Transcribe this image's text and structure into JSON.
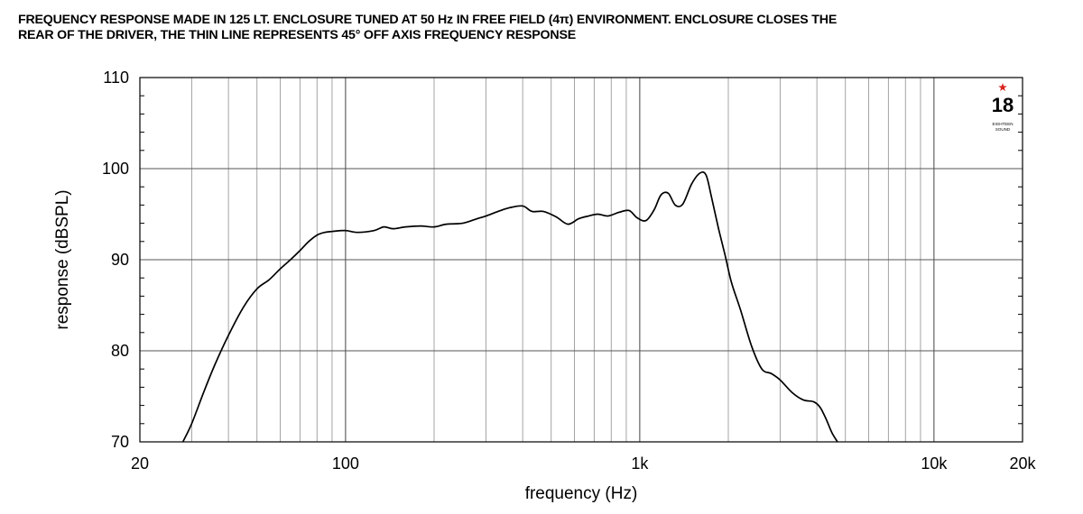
{
  "chart_data": {
    "type": "line",
    "title_line1": "FREQUENCY RESPONSE MADE IN 125 LT. ENCLOSURE TUNED AT 50 Hz IN FREE FIELD (4π) ENVIRONMENT. ENCLOSURE CLOSES THE",
    "title_line2": "REAR OF THE DRIVER, THE THIN LINE REPRESENTS 45° OFF AXIS FREQUENCY RESPONSE",
    "xlabel": "frequency (Hz)",
    "ylabel": "response (dBSPL)",
    "x_scale": "log",
    "xlim": [
      20,
      20000
    ],
    "ylim": [
      70,
      110
    ],
    "grid": true,
    "x_ticks": [
      {
        "value": 20,
        "label": "20"
      },
      {
        "value": 100,
        "label": "100"
      },
      {
        "value": 1000,
        "label": "1k"
      },
      {
        "value": 10000,
        "label": "10k"
      },
      {
        "value": 20000,
        "label": "20k"
      }
    ],
    "y_ticks": [
      {
        "value": 70,
        "label": "70"
      },
      {
        "value": 80,
        "label": "80"
      },
      {
        "value": 90,
        "label": "90"
      },
      {
        "value": 100,
        "label": "100"
      },
      {
        "value": 110,
        "label": "110"
      }
    ],
    "series": [
      {
        "x": [
          28,
          30,
          33,
          36,
          40,
          45,
          50,
          55,
          60,
          65,
          70,
          75,
          80,
          85,
          90,
          100,
          110,
          125,
          135,
          145,
          160,
          180,
          200,
          220,
          250,
          280,
          300,
          330,
          360,
          400,
          430,
          470,
          520,
          570,
          620,
          670,
          720,
          780,
          850,
          920,
          980,
          1050,
          1120,
          1180,
          1250,
          1320,
          1400,
          1500,
          1600,
          1680,
          1750,
          1850,
          1950,
          2050,
          2200,
          2400,
          2600,
          2800,
          3000,
          3300,
          3600,
          3900,
          4100,
          4300,
          4500,
          4700
        ],
        "y": [
          70,
          72,
          75.5,
          78.5,
          81.7,
          84.8,
          86.8,
          87.8,
          89,
          90,
          91,
          92,
          92.7,
          93,
          93.1,
          93.2,
          93,
          93.2,
          93.6,
          93.4,
          93.6,
          93.7,
          93.6,
          93.9,
          94,
          94.5,
          94.8,
          95.3,
          95.7,
          95.9,
          95.3,
          95.3,
          94.7,
          93.9,
          94.5,
          94.8,
          95,
          94.8,
          95.2,
          95.4,
          94.6,
          94.3,
          95.5,
          97.1,
          97.3,
          96,
          96.1,
          98.3,
          99.5,
          99.3,
          97,
          93.5,
          90.5,
          87.5,
          84.5,
          80.5,
          78,
          77.5,
          76.8,
          75.4,
          74.6,
          74.4,
          73.8,
          72.5,
          71,
          70
        ]
      }
    ]
  },
  "logo": {
    "number": "18",
    "text_line1": "EIGHTEEN",
    "text_line2": "SOUND",
    "accent_color": "#d9251d"
  }
}
